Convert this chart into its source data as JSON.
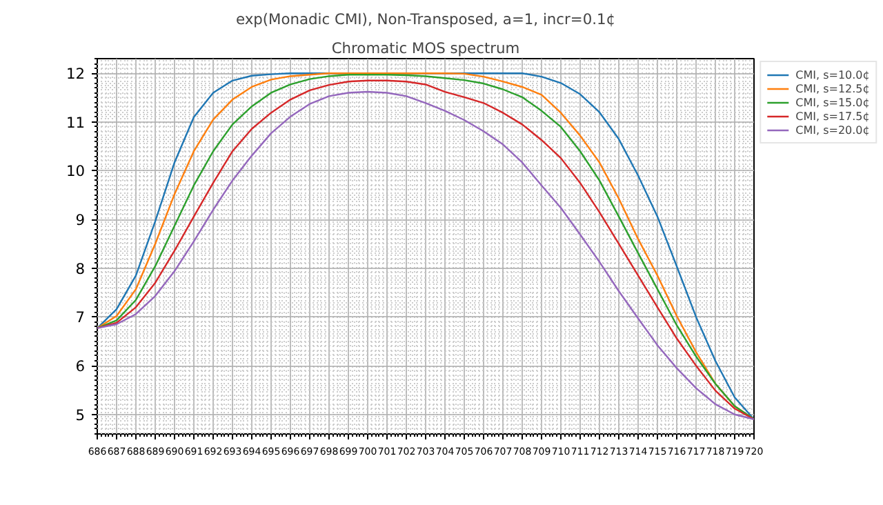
{
  "chart_data": {
    "type": "line",
    "title": "exp(Monadic CMI), Non-Transposed, a=1, incr=0.1¢",
    "subtitle": "Chromatic MOS spectrum",
    "x": [
      686,
      687,
      688,
      689,
      690,
      691,
      692,
      693,
      694,
      695,
      696,
      697,
      698,
      699,
      700,
      701,
      702,
      703,
      704,
      705,
      706,
      707,
      708,
      709,
      710,
      711,
      712,
      713,
      714,
      715,
      716,
      717,
      718,
      719,
      720
    ],
    "series": [
      {
        "name": "CMI, s=10.0¢",
        "color": "#1f77b4",
        "values": [
          6.77,
          7.16,
          7.85,
          8.96,
          10.17,
          11.1,
          11.6,
          11.85,
          11.95,
          11.98,
          12.0,
          12.0,
          12.0,
          12.0,
          12.0,
          12.0,
          12.0,
          12.0,
          12.0,
          12.0,
          12.0,
          12.0,
          12.0,
          11.93,
          11.8,
          11.57,
          11.2,
          10.65,
          9.9,
          9.06,
          8.04,
          7.0,
          6.1,
          5.35,
          4.9
        ]
      },
      {
        "name": "CMI, s=12.5¢",
        "color": "#ff7f0e",
        "values": [
          6.77,
          7.02,
          7.57,
          8.5,
          9.52,
          10.4,
          11.05,
          11.46,
          11.72,
          11.87,
          11.94,
          11.97,
          12.0,
          12.0,
          12.0,
          12.0,
          12.0,
          12.0,
          12.0,
          11.99,
          11.93,
          11.83,
          11.72,
          11.56,
          11.19,
          10.72,
          10.17,
          9.43,
          8.6,
          7.85,
          7.02,
          6.28,
          5.63,
          5.17,
          4.9
        ]
      },
      {
        "name": "CMI, s=15.0¢",
        "color": "#2ca02c",
        "values": [
          6.77,
          6.93,
          7.35,
          8.04,
          8.87,
          9.7,
          10.4,
          10.95,
          11.32,
          11.6,
          11.77,
          11.88,
          11.94,
          11.97,
          11.97,
          11.97,
          11.96,
          11.94,
          11.9,
          11.86,
          11.79,
          11.67,
          11.51,
          11.23,
          10.9,
          10.4,
          9.8,
          9.06,
          8.31,
          7.57,
          6.83,
          6.19,
          5.63,
          5.17,
          4.9
        ]
      },
      {
        "name": "CMI, s=17.5¢",
        "color": "#d62728",
        "values": [
          6.77,
          6.88,
          7.2,
          7.7,
          8.36,
          9.06,
          9.75,
          10.4,
          10.86,
          11.19,
          11.46,
          11.65,
          11.76,
          11.83,
          11.85,
          11.85,
          11.83,
          11.77,
          11.62,
          11.51,
          11.39,
          11.19,
          10.95,
          10.63,
          10.26,
          9.75,
          9.15,
          8.5,
          7.85,
          7.2,
          6.56,
          6.0,
          5.49,
          5.12,
          4.9
        ]
      },
      {
        "name": "CMI, s=20.0¢",
        "color": "#9467bd",
        "values": [
          6.77,
          6.85,
          7.06,
          7.43,
          7.94,
          8.55,
          9.2,
          9.8,
          10.31,
          10.77,
          11.11,
          11.37,
          11.53,
          11.6,
          11.62,
          11.6,
          11.53,
          11.39,
          11.23,
          11.04,
          10.81,
          10.54,
          10.17,
          9.7,
          9.24,
          8.69,
          8.13,
          7.53,
          6.97,
          6.42,
          5.95,
          5.54,
          5.21,
          5.0,
          4.9
        ]
      }
    ],
    "xlim": [
      686,
      720
    ],
    "ylim": [
      4.6,
      12.3
    ],
    "xticks": [
      686,
      687,
      688,
      689,
      690,
      691,
      692,
      693,
      694,
      695,
      696,
      697,
      698,
      699,
      700,
      701,
      702,
      703,
      704,
      705,
      706,
      707,
      708,
      709,
      710,
      711,
      712,
      713,
      714,
      715,
      716,
      717,
      718,
      719,
      720
    ],
    "yticks": [
      5,
      6,
      7,
      8,
      9,
      10,
      11,
      12
    ],
    "grid": true,
    "legend": "top right",
    "marker": "none",
    "line_style": "solid"
  }
}
